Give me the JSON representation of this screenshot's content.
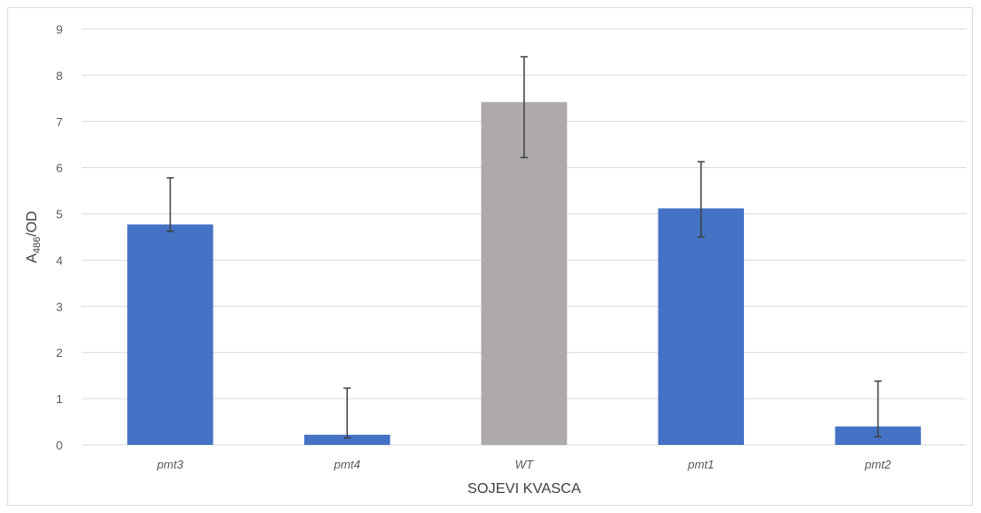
{
  "chart_data": {
    "type": "bar",
    "title": "",
    "xlabel": "SOJEVI KVASCA",
    "ylabel": {
      "base": "A",
      "sub": "486",
      "rest": "/OD"
    },
    "ylim": [
      0,
      9
    ],
    "yticks": [
      0,
      1,
      2,
      3,
      4,
      5,
      6,
      7,
      8,
      9
    ],
    "grid": true,
    "categories": [
      "pmt3",
      "pmt4",
      "WT",
      "pmt1",
      "pmt2"
    ],
    "values": [
      4.77,
      0.22,
      7.42,
      5.12,
      0.4
    ],
    "error_low": [
      4.62,
      0.15,
      6.22,
      4.5,
      0.18
    ],
    "error_high": [
      5.78,
      1.23,
      8.4,
      6.13,
      1.38
    ],
    "colors": [
      "#4472c4",
      "#4472c4",
      "#aeaaaa",
      "#4472c4",
      "#4472c4"
    ]
  }
}
